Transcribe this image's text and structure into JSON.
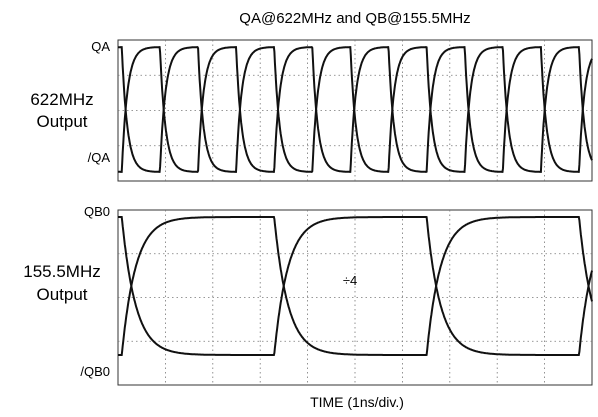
{
  "chart_data": [
    {
      "type": "line",
      "title": "QA@622MHz and QB@155.5MHz",
      "side_label_lines": [
        "622MHz",
        "Output"
      ],
      "signal_labels": {
        "top": "QA",
        "bottom": "/QA"
      },
      "frequency_mhz": 622,
      "series": [
        {
          "name": "QA",
          "phase_deg": 0
        },
        {
          "name": "/QA",
          "phase_deg": 180
        }
      ],
      "xlim": [
        0,
        10
      ],
      "grid": true,
      "color": "#111111"
    },
    {
      "type": "line",
      "side_label_lines": [
        "155.5MHz",
        "Output"
      ],
      "signal_labels": {
        "top": "QB0",
        "bottom": "/QB0"
      },
      "frequency_mhz": 155.5,
      "annotation": "÷4",
      "series": [
        {
          "name": "QB0",
          "phase_deg": 0
        },
        {
          "name": "/QB0",
          "phase_deg": 180
        }
      ],
      "xlim": [
        0,
        10
      ],
      "xlabel": "TIME (1ns/div.)",
      "grid": true,
      "color": "#111111"
    }
  ]
}
